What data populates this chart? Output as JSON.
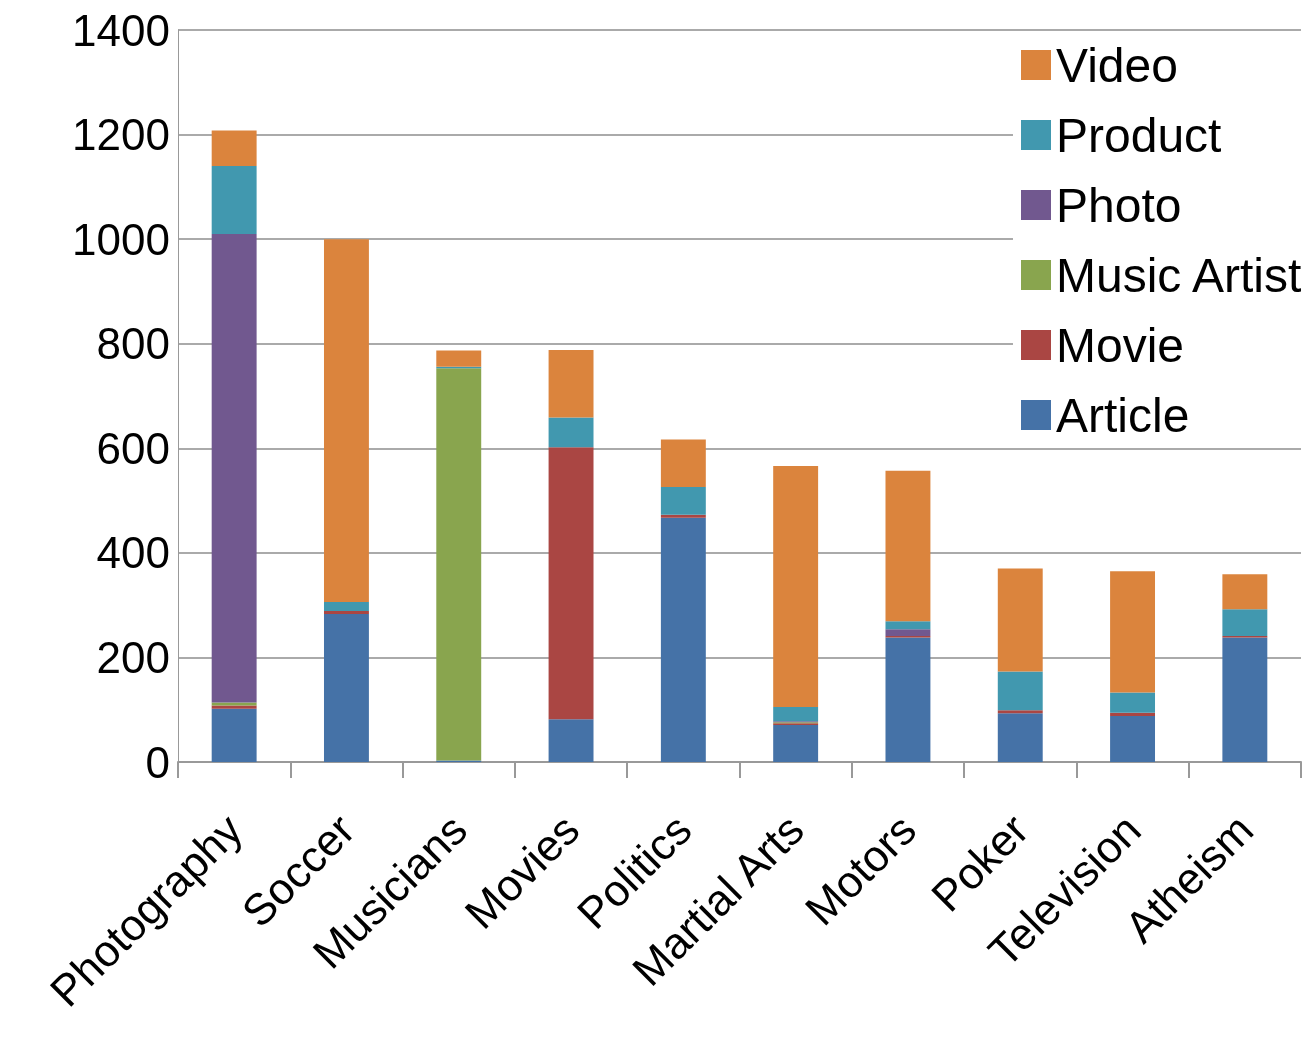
{
  "chart_data": {
    "type": "bar",
    "stacked": true,
    "categories": [
      "Photography",
      "Soccer",
      "Musicians",
      "Movies",
      "Politics",
      "Martial Arts",
      "Motors",
      "Poker",
      "Television",
      "Atheism"
    ],
    "series": [
      {
        "name": "Article",
        "color": "#4572a7",
        "values": [
          102,
          283,
          3,
          82,
          467,
          71,
          238,
          93,
          88,
          238
        ]
      },
      {
        "name": "Movie",
        "color": "#aa4643",
        "values": [
          6,
          6,
          0,
          520,
          6,
          3,
          3,
          6,
          6,
          3
        ]
      },
      {
        "name": "Music Artist",
        "color": "#89a54e",
        "values": [
          6,
          0,
          750,
          0,
          0,
          2,
          0,
          0,
          0,
          0
        ]
      },
      {
        "name": "Photo",
        "color": "#71588f",
        "values": [
          896,
          0,
          0,
          0,
          0,
          2,
          13,
          0,
          0,
          0
        ]
      },
      {
        "name": "Product",
        "color": "#4198af",
        "values": [
          130,
          17,
          3,
          57,
          53,
          27,
          15,
          74,
          39,
          51
        ]
      },
      {
        "name": "Video",
        "color": "#db843d",
        "values": [
          68,
          694,
          31,
          129,
          91,
          461,
          288,
          197,
          232,
          67
        ]
      }
    ],
    "ylim": [
      0,
      1400
    ],
    "yticks": [
      0,
      200,
      400,
      600,
      800,
      1000,
      1200,
      1400
    ],
    "grid": "y",
    "legend": "top right"
  }
}
